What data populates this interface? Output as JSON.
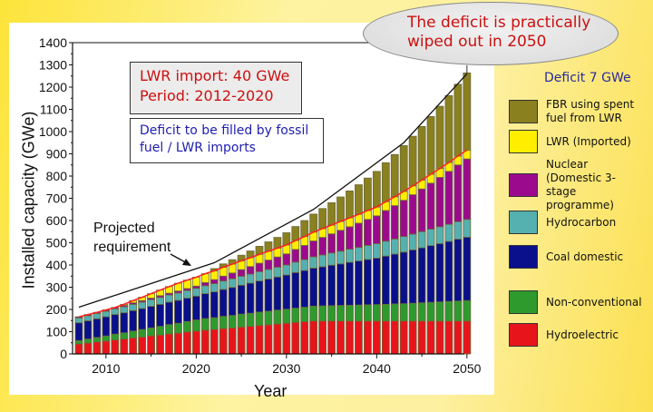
{
  "chart_data": {
    "type": "bar",
    "stacked": true,
    "xlabel": "Year",
    "ylabel": "Installed capacity (GWe)",
    "ylim": [
      0,
      1400
    ],
    "xlim": [
      2007,
      2050
    ],
    "yticks": [
      0,
      100,
      200,
      300,
      400,
      500,
      600,
      700,
      800,
      900,
      1000,
      1100,
      1200,
      1300,
      1400
    ],
    "xticks": [
      2010,
      2020,
      2030,
      2040,
      2050
    ],
    "x": [
      2007,
      2008,
      2009,
      2010,
      2011,
      2012,
      2013,
      2014,
      2015,
      2016,
      2017,
      2018,
      2019,
      2020,
      2021,
      2022,
      2023,
      2024,
      2025,
      2026,
      2027,
      2028,
      2029,
      2030,
      2031,
      2032,
      2033,
      2034,
      2035,
      2036,
      2037,
      2038,
      2039,
      2040,
      2041,
      2042,
      2043,
      2044,
      2045,
      2046,
      2047,
      2048,
      2049,
      2050
    ],
    "series": [
      {
        "name": "Hydroelectric",
        "color": "#e8141c",
        "values": [
          45,
          49,
          54,
          58,
          63,
          67,
          72,
          76,
          81,
          85,
          90,
          94,
          99,
          103,
          107,
          110,
          114,
          117,
          121,
          124,
          128,
          131,
          135,
          138,
          142,
          145,
          148,
          148,
          148,
          148,
          148,
          148,
          148,
          148,
          148,
          148,
          148,
          148,
          148,
          148,
          148,
          148,
          148,
          148
        ]
      },
      {
        "name": "Non-conventional",
        "color": "#2e9a2e",
        "values": [
          15,
          18,
          20,
          23,
          26,
          28,
          31,
          34,
          36,
          39,
          42,
          44,
          47,
          50,
          52,
          53,
          55,
          56,
          58,
          59,
          60,
          61,
          62,
          63,
          64,
          65,
          67,
          68,
          69,
          70,
          71,
          72,
          73,
          74,
          75,
          77,
          78,
          80,
          82,
          84,
          86,
          88,
          90,
          92
        ]
      },
      {
        "name": "Coal domestic",
        "color": "#0a0f8c",
        "values": [
          80,
          82,
          84,
          86,
          88,
          90,
          92,
          94,
          97,
          99,
          101,
          103,
          105,
          107,
          112,
          116,
          121,
          126,
          130,
          135,
          140,
          145,
          149,
          154,
          160,
          165,
          171,
          176,
          182,
          187,
          193,
          198,
          204,
          209,
          217,
          224,
          232,
          240,
          247,
          255,
          262,
          270,
          278,
          285
        ]
      },
      {
        "name": "Hydrocarbon",
        "color": "#55b0b0",
        "values": [
          22,
          23,
          24,
          25,
          26,
          27,
          28,
          29,
          30,
          31,
          32,
          33,
          34,
          35,
          36,
          37,
          38,
          39,
          40,
          41,
          42,
          43,
          44,
          45,
          47,
          49,
          51,
          53,
          55,
          57,
          59,
          61,
          63,
          65,
          67,
          68,
          70,
          71,
          73,
          74,
          76,
          77,
          79,
          80
        ]
      },
      {
        "name": "Nuclear (Domestic 3-stage programme)",
        "color": "#9b0a8c",
        "values": [
          5,
          5,
          5,
          6,
          6,
          6,
          7,
          7,
          7,
          8,
          8,
          9,
          9,
          10,
          14,
          18,
          22,
          26,
          30,
          34,
          38,
          42,
          46,
          50,
          57,
          64,
          71,
          79,
          86,
          94,
          101,
          109,
          117,
          125,
          138,
          150,
          163,
          177,
          192,
          207,
          222,
          238,
          255,
          272
        ]
      },
      {
        "name": "LWR (Imported)",
        "color": "#ffee00",
        "values": [
          0,
          0,
          0,
          0,
          0,
          5,
          10,
          15,
          20,
          25,
          30,
          35,
          38,
          40,
          40,
          40,
          40,
          40,
          40,
          40,
          40,
          40,
          40,
          40,
          40,
          40,
          40,
          40,
          40,
          40,
          40,
          40,
          40,
          40,
          40,
          40,
          40,
          40,
          40,
          40,
          40,
          40,
          40,
          40
        ]
      },
      {
        "name": "FBR using spent fuel from LWR",
        "color": "#8a8020",
        "values": [
          0,
          0,
          0,
          0,
          0,
          0,
          0,
          0,
          0,
          0,
          0,
          0,
          0,
          0,
          0,
          10,
          15,
          20,
          25,
          30,
          36,
          42,
          48,
          55,
          63,
          72,
          81,
          90,
          100,
          110,
          121,
          133,
          146,
          160,
          175,
          190,
          206,
          223,
          241,
          260,
          280,
          301,
          323,
          347
        ]
      }
    ],
    "projected_requirement": {
      "label": "Projected requirement",
      "x": [
        2007,
        2022,
        2033,
        2043,
        2050
      ],
      "y": [
        210,
        410,
        650,
        950,
        1260
      ]
    },
    "annotations": {
      "lwr_import": [
        "LWR import: 40 GWe",
        "Period: 2012-2020"
      ],
      "deficit_fill": [
        "Deficit to be filled by fossil",
        "fuel / LWR imports"
      ],
      "callout": [
        "The deficit is practically",
        "wiped out in 2050"
      ],
      "deficit": "Deficit 7 GWe",
      "projected_lines": [
        "Projected",
        "requirement"
      ]
    },
    "legend": [
      {
        "label": "FBR using spent fuel from LWR",
        "color": "#8a8020"
      },
      {
        "label": "LWR (Imported)",
        "color": "#ffee00"
      },
      {
        "label": "Nuclear (Domestic 3-stage programme)",
        "color": "#9b0a8c"
      },
      {
        "label": "Hydrocarbon",
        "color": "#55b0b0"
      },
      {
        "label": "Coal domestic",
        "color": "#0a0f8c"
      },
      {
        "label": "Non-conventional",
        "color": "#2e9a2e"
      },
      {
        "label": "Hydroelectric",
        "color": "#e8141c"
      }
    ],
    "legend_placement": "right"
  }
}
